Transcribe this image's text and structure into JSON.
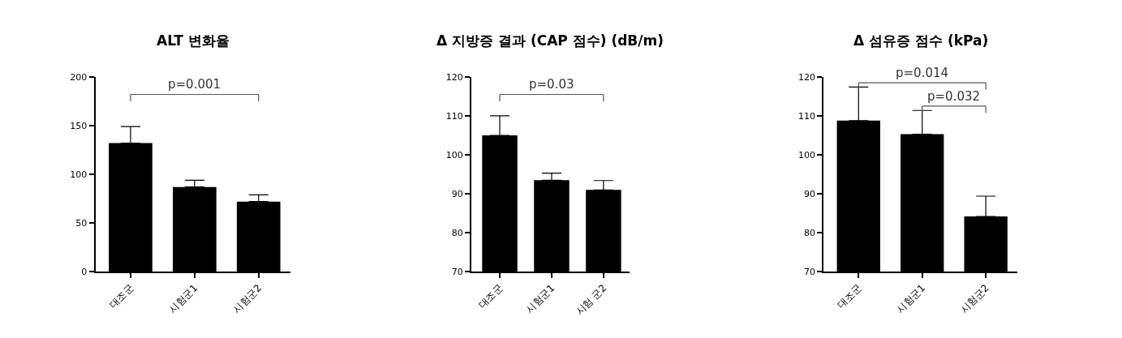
{
  "chart_data": [
    {
      "type": "bar",
      "title": "ALT 변화율",
      "categories": [
        "대조군",
        "시험군1",
        "시험군2"
      ],
      "values": [
        132,
        87,
        72
      ],
      "color": "#000000",
      "errors": [
        [
          132,
          149
        ],
        [
          87,
          94
        ],
        [
          72,
          79
        ]
      ],
      "ylim": [
        0,
        200
      ],
      "yticks": [
        0,
        50,
        100,
        150,
        200
      ],
      "annotations": [
        "p=0.001"
      ]
    },
    {
      "type": "bar",
      "title": "Δ 지방증 결과 (CAP 점수) (dB/m)",
      "categories": [
        "대조군",
        "시험군1",
        "시험 군2"
      ],
      "values": [
        105,
        93.5,
        91
      ],
      "color": "#000000",
      "errors": [
        [
          105,
          110
        ],
        [
          93.5,
          95.3
        ],
        [
          91,
          93.4
        ]
      ],
      "ylim": [
        70,
        120
      ],
      "yticks": [
        70,
        80,
        90,
        100,
        110,
        120
      ],
      "annotations": [
        "p=0.03"
      ]
    },
    {
      "type": "bar",
      "title": "Δ 섬유증 점수 (kPa)",
      "categories": [
        "대조군",
        "시험군1",
        "시험군2"
      ],
      "values": [
        108.8,
        105.3,
        84.2
      ],
      "color": "#000000",
      "errors": [
        [
          108.8,
          117.4
        ],
        [
          105.3,
          111.4
        ],
        [
          84.2,
          89.4
        ]
      ],
      "ylim": [
        70,
        120
      ],
      "yticks": [
        70,
        80,
        90,
        100,
        110,
        120
      ],
      "annotations": [
        "p=0.014",
        "p=0.032"
      ]
    }
  ]
}
